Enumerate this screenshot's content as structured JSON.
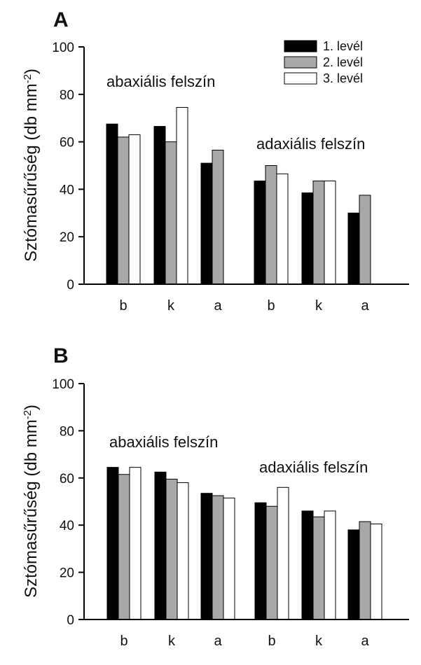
{
  "chart_data": [
    {
      "type": "bar",
      "panel_label": "A",
      "ylabel_main": "Sztómasűrűség (db mm",
      "ylabel_sup": "-2",
      "ylabel_close": ")",
      "ylim": [
        0,
        100
      ],
      "yticks": [
        0,
        20,
        40,
        60,
        80,
        100
      ],
      "categories": [
        "b",
        "k",
        "a",
        "b",
        "k",
        "a"
      ],
      "annotations": [
        "abaxiális felszín",
        "adaxiális felszín"
      ],
      "series": [
        {
          "name": "1. levél",
          "color": "#000000",
          "values": [
            67.5,
            66.5,
            51,
            43.5,
            38.5,
            30
          ]
        },
        {
          "name": "2. levél",
          "color": "#a8a8a8",
          "values": [
            62,
            60,
            56.5,
            50,
            43.5,
            37.5
          ]
        },
        {
          "name": "3. levél",
          "color": "#ffffff",
          "values": [
            63,
            74.5,
            null,
            46.5,
            43.5,
            null
          ]
        }
      ],
      "legend": {
        "position": "top-right"
      }
    },
    {
      "type": "bar",
      "panel_label": "B",
      "ylabel_main": "Sztómasűrűség (db mm",
      "ylabel_sup": "-2",
      "ylabel_close": ")",
      "ylim": [
        0,
        100
      ],
      "yticks": [
        0,
        20,
        40,
        60,
        80,
        100
      ],
      "categories": [
        "b",
        "k",
        "a",
        "b",
        "k",
        "a"
      ],
      "annotations": [
        "abaxiális felszín",
        "adaxiális felszín"
      ],
      "series": [
        {
          "name": "1. levél",
          "color": "#000000",
          "values": [
            64.5,
            62.5,
            53.5,
            49.5,
            46,
            38
          ]
        },
        {
          "name": "2. levél",
          "color": "#a8a8a8",
          "values": [
            61.5,
            59.5,
            52.5,
            48,
            43.5,
            41.5
          ]
        },
        {
          "name": "3. levél",
          "color": "#ffffff",
          "values": [
            64.5,
            58,
            51.5,
            56,
            46,
            40.5
          ]
        }
      ]
    }
  ]
}
